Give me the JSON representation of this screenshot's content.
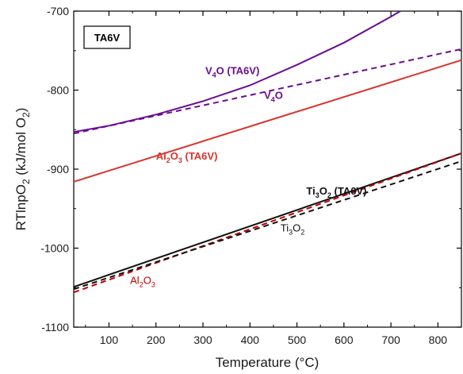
{
  "chart_data": {
    "type": "line",
    "title": "",
    "panel_label": "TA6V",
    "xlabel": "Temperature (°C)",
    "ylabel": "RTlnpO2 (kJ/mol O2)",
    "xlim": [
      25,
      850
    ],
    "ylim": [
      -1100,
      -700
    ],
    "xticks": [
      100,
      200,
      300,
      400,
      500,
      600,
      700,
      800
    ],
    "yticks": [
      -1100,
      -1000,
      -900,
      -800,
      -700
    ],
    "grid": false,
    "series": [
      {
        "key": "v4o_ta6v",
        "color": "#6a0d91",
        "dash": "solid",
        "x": [
          25,
          100,
          200,
          300,
          400,
          500,
          600,
          700,
          720
        ],
        "y": [
          -853,
          -845,
          -831,
          -814,
          -794,
          -768,
          -740,
          -707,
          -700
        ]
      },
      {
        "key": "v4o",
        "color": "#6a0d91",
        "dash": "dashed",
        "x": [
          25,
          850
        ],
        "y": [
          -855,
          -748
        ]
      },
      {
        "key": "al2o3_ta6v",
        "color": "#d9342b",
        "dash": "solid",
        "x": [
          25,
          850
        ],
        "y": [
          -916,
          -762
        ]
      },
      {
        "key": "ti3o2_ta6v",
        "color": "#111111",
        "dash": "solid",
        "x": [
          25,
          850
        ],
        "y": [
          -1049,
          -880
        ]
      },
      {
        "key": "al2o3",
        "color": "#c00000",
        "dash": "dashed",
        "x": [
          25,
          850
        ],
        "y": [
          -1056,
          -880
        ]
      },
      {
        "key": "ti3o2",
        "color": "#111111",
        "dash": "dashed",
        "x": [
          25,
          850
        ],
        "y": [
          -1052,
          -890
        ]
      }
    ],
    "annotations": [
      {
        "key": "v4o_ta6v",
        "base": "V",
        "sub": "4",
        "rest": "O (TA6V)",
        "color": "#6a0d91",
        "bold": true,
        "x": 305,
        "y": -780
      },
      {
        "key": "v4o",
        "base": "V",
        "sub": "4",
        "rest": "O",
        "color": "#6a0d91",
        "bold": true,
        "x": 430,
        "y": -811
      },
      {
        "key": "al2o3_ta6v",
        "base": "Al",
        "sub": "2",
        "mid": "O",
        "sub2": "3",
        "rest": " (TA6V)",
        "color": "#d9342b",
        "bold": true,
        "x": 200,
        "y": -888
      },
      {
        "key": "ti3o2_ta6v",
        "base": "Ti",
        "sub": "3",
        "mid": "O",
        "sub2": "2",
        "rest": " (TA6V)",
        "color": "#111111",
        "bold": true,
        "x": 520,
        "y": -932
      },
      {
        "key": "ti3o2",
        "base": "Ti",
        "sub": "3",
        "mid": "O",
        "sub2": "2",
        "rest": "",
        "color": "#111111",
        "bold": false,
        "x": 465,
        "y": -979
      },
      {
        "key": "al2o3",
        "base": "Al",
        "sub": "2",
        "mid": "O",
        "sub2": "3",
        "rest": "",
        "color": "#c00000",
        "bold": false,
        "x": 145,
        "y": -1045
      }
    ]
  }
}
